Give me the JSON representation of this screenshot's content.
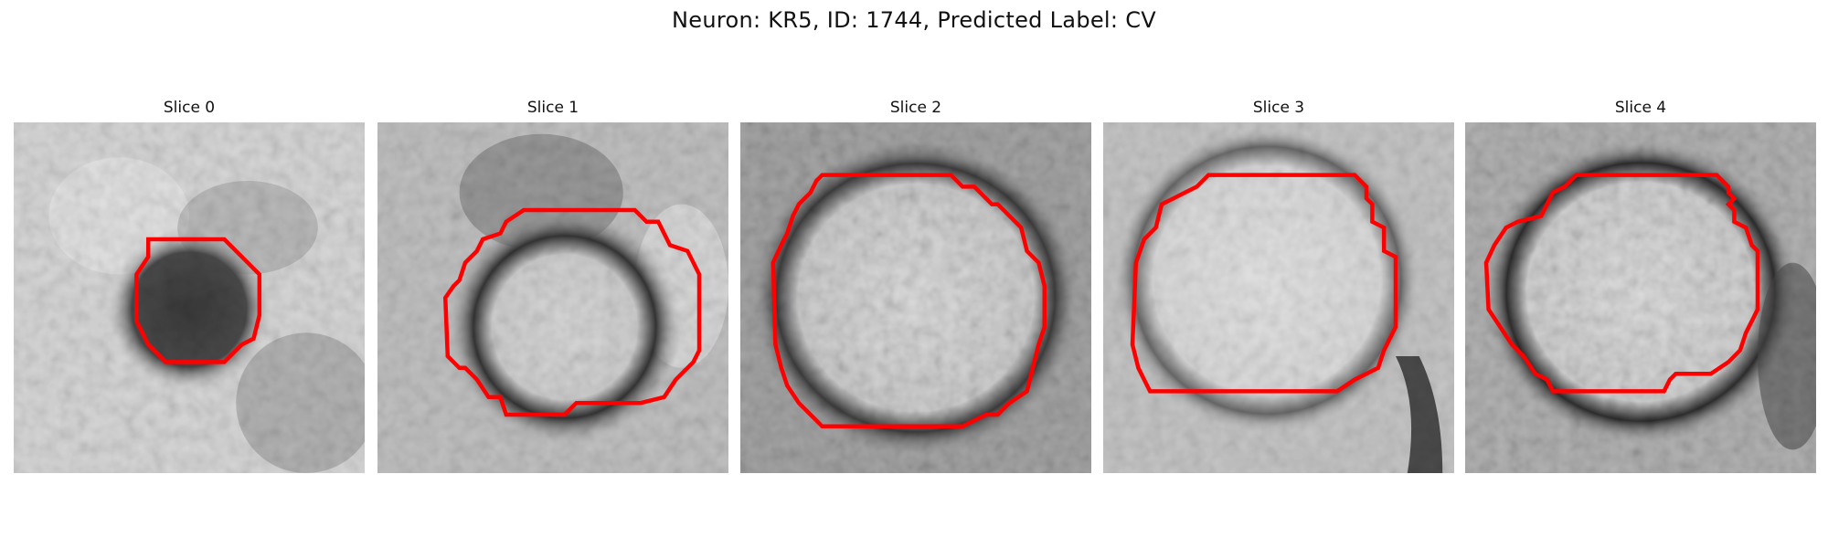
{
  "figure": {
    "title": "Neuron: KR5, ID: 1744, Predicted Label: CV"
  },
  "panels": [
    {
      "title": "Slice 0",
      "image": {
        "description_key": "em-slice",
        "background_gray": "#d4d4d4",
        "blob_color": "#2f2f2f",
        "contour_color": "#ff0000"
      }
    },
    {
      "title": "Slice 1",
      "image": {
        "description_key": "em-slice",
        "background_gray": "#bdbdbd",
        "blob_color": "#d9d9d9",
        "contour_color": "#ff0000"
      }
    },
    {
      "title": "Slice 2",
      "image": {
        "description_key": "em-slice",
        "background_gray": "#9a9a9a",
        "blob_color": "#dddddd",
        "contour_color": "#ff0000"
      }
    },
    {
      "title": "Slice 3",
      "image": {
        "description_key": "em-slice",
        "background_gray": "#bdbdbd",
        "blob_color": "#e3e3e3",
        "contour_color": "#ff0000"
      }
    },
    {
      "title": "Slice 4",
      "image": {
        "description_key": "em-slice",
        "background_gray": "#b0b0b0",
        "blob_color": "#dcdcdc",
        "contour_color": "#ff0000"
      }
    }
  ]
}
